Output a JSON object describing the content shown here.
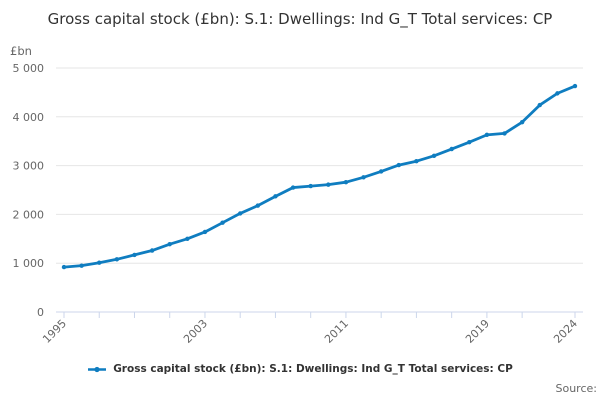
{
  "source_label": "Source:",
  "colors": {
    "line": "#0f7dc0",
    "grid": "#e6e6e6",
    "axis": "#ccd6eb",
    "label": "#666666",
    "title": "#333333"
  },
  "chart_data": {
    "type": "line",
    "title": "Gross capital stock (£bn): S.1: Dwellings: Ind G_T Total services: CP",
    "y_unit": "£bn",
    "ylim": [
      0,
      5000
    ],
    "grid": true,
    "legend_position": "bottom",
    "x": [
      1995,
      1996,
      1997,
      1998,
      1999,
      2000,
      2001,
      2002,
      2003,
      2004,
      2005,
      2006,
      2007,
      2008,
      2009,
      2010,
      2011,
      2012,
      2013,
      2014,
      2015,
      2016,
      2017,
      2018,
      2019,
      2020,
      2021,
      2022,
      2023,
      2024
    ],
    "series": [
      {
        "name": "Gross capital stock (£bn): S.1: Dwellings: Ind G_T Total services: CP",
        "color": "#0f7dc0",
        "values": [
          920,
          950,
          1010,
          1080,
          1170,
          1260,
          1390,
          1500,
          1640,
          1830,
          2020,
          2180,
          2370,
          2550,
          2580,
          2610,
          2660,
          2760,
          2880,
          3010,
          3090,
          3200,
          3340,
          3480,
          3630,
          3660,
          3890,
          4240,
          4480,
          4630
        ]
      }
    ],
    "y_ticks": [
      {
        "value": 0,
        "label": "0"
      },
      {
        "value": 1000,
        "label": "1 000"
      },
      {
        "value": 2000,
        "label": "2 000"
      },
      {
        "value": 3000,
        "label": "3 000"
      },
      {
        "value": 4000,
        "label": "4 000"
      },
      {
        "value": 5000,
        "label": "5 000"
      }
    ],
    "x_tick_years": [
      1995,
      1997,
      1999,
      2001,
      2003,
      2005,
      2007,
      2009,
      2011,
      2013,
      2015,
      2017,
      2019,
      2021,
      2024
    ],
    "x_labeled_years": [
      1995,
      2003,
      2011,
      2019,
      2024
    ]
  }
}
